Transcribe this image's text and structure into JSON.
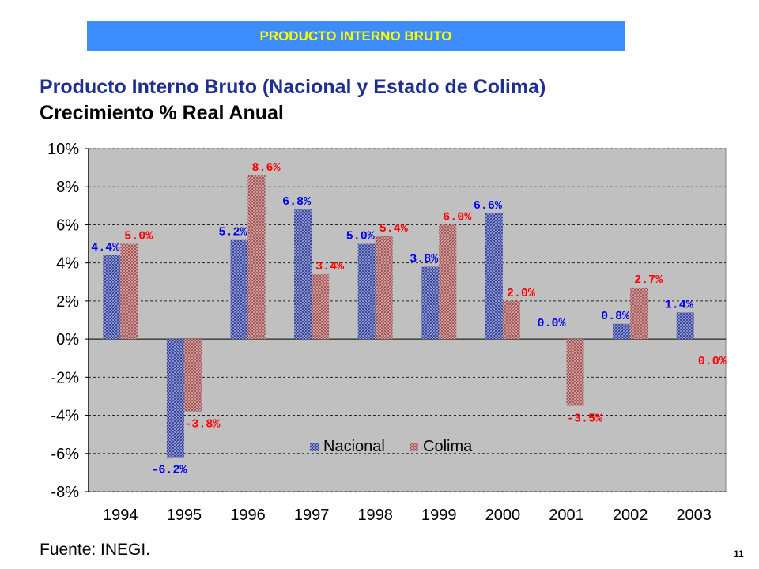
{
  "banner": {
    "text": "PRODUCTO INTERNO BRUTO",
    "bg_color": "#3d8dff",
    "text_color": "#ffff00"
  },
  "heading": {
    "line1": "Producto Interno Bruto (Nacional y Estado de Colima)",
    "line2": "Crecimiento % Real Anual"
  },
  "footer": {
    "source": "Fuente: INEGI.",
    "page_number": "11"
  },
  "chart_data": {
    "type": "bar",
    "categories": [
      "1994",
      "1995",
      "1996",
      "1997",
      "1998",
      "1999",
      "2000",
      "2001",
      "2002",
      "2003"
    ],
    "series": [
      {
        "name": "Nacional",
        "values": [
          4.4,
          -6.2,
          5.2,
          6.8,
          5.0,
          3.8,
          6.6,
          0.0,
          0.8,
          1.4
        ],
        "labels": [
          "4.4%",
          "-6.2%",
          "5.2%",
          "6.8%",
          "5.0%",
          "3.8%",
          "6.6%",
          "0.0%",
          "0.8%",
          "1.4%"
        ],
        "color": "#8a92c8",
        "label_color": "#0000ee"
      },
      {
        "name": "Colima",
        "values": [
          5.0,
          -3.8,
          8.6,
          3.4,
          5.4,
          6.0,
          2.0,
          -3.5,
          2.7,
          0.0
        ],
        "labels": [
          "5.0%",
          "-3.8%",
          "8.6%",
          "3.4%",
          "5.4%",
          "6.0%",
          "2.0%",
          "-3.5%",
          "2.7%",
          "0.0%"
        ],
        "color": "#c98a8a",
        "label_color": "#ff0000"
      }
    ],
    "y_ticks": [
      "10%",
      "8%",
      "6%",
      "4%",
      "2%",
      "0%",
      "-2%",
      "-4%",
      "-6%",
      "-8%"
    ],
    "ylim": [
      -8,
      10
    ],
    "grid": true,
    "plot_bg": "#c0c0c0",
    "legend_position": "bottom-center"
  }
}
